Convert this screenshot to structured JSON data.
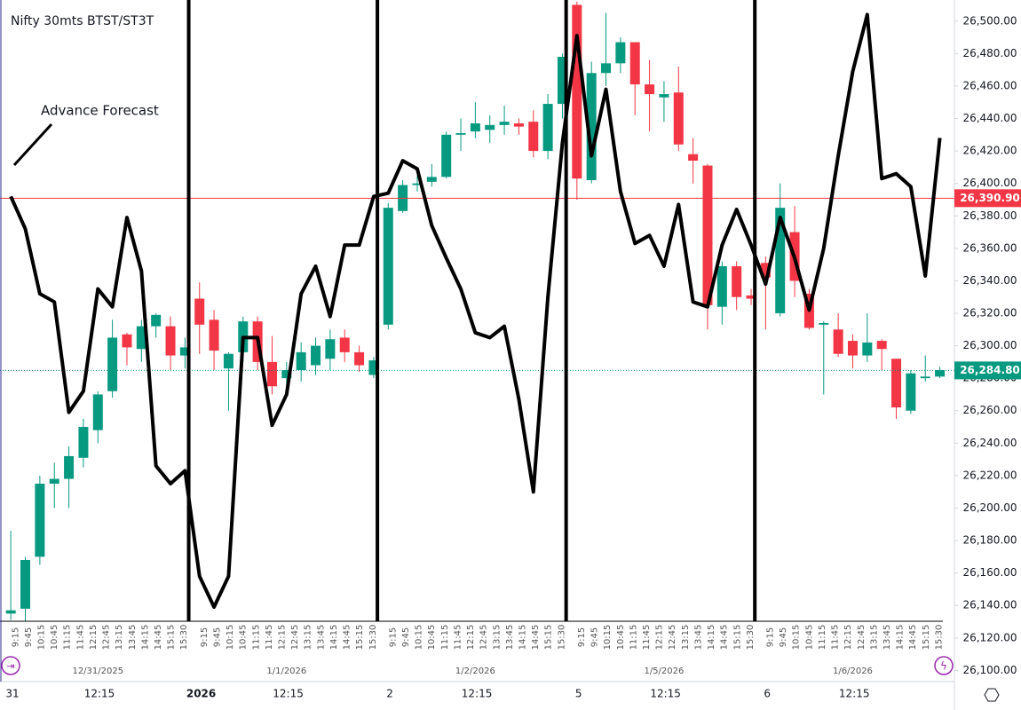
{
  "chart_data": {
    "type": "candlestick",
    "title": "Nifty 30mts BTST/ST3T",
    "annotation": "Advance Forecast",
    "ylim": [
      26092,
      26513
    ],
    "yticks": [
      {
        "value": 26100,
        "label": "26,100.00"
      },
      {
        "value": 26120,
        "label": "26,120.00"
      },
      {
        "value": 26140,
        "label": "26,140.00"
      },
      {
        "value": 26160,
        "label": "26,160.00"
      },
      {
        "value": 26180,
        "label": "26,180.00"
      },
      {
        "value": 26200,
        "label": "26,200.00"
      },
      {
        "value": 26220,
        "label": "26,220.00"
      },
      {
        "value": 26240,
        "label": "26,240.00"
      },
      {
        "value": 26260,
        "label": "26,260.00"
      },
      {
        "value": 26280,
        "label": "26,280.00"
      },
      {
        "value": 26300,
        "label": "26,300.00"
      },
      {
        "value": 26320,
        "label": "26,320.00"
      },
      {
        "value": 26340,
        "label": "26,340.00"
      },
      {
        "value": 26360,
        "label": "26,360.00"
      },
      {
        "value": 26380,
        "label": "26,380.00"
      },
      {
        "value": 26400,
        "label": "26,400.00"
      },
      {
        "value": 26420,
        "label": "26,420.00"
      },
      {
        "value": 26440,
        "label": "26,440.00"
      },
      {
        "value": 26460,
        "label": "26,460.00"
      },
      {
        "value": 26480,
        "label": "26,480.00"
      },
      {
        "value": 26500,
        "label": "26,500.00"
      }
    ],
    "up_color": "#089981",
    "down_color": "#f23645",
    "price_lines": [
      {
        "value": 26390.9,
        "label": "26,390.90",
        "color": "#f23645",
        "style": "solid"
      },
      {
        "value": 26284.8,
        "label": "26,284.80",
        "color": "#089981",
        "style": "dotted"
      }
    ],
    "days": [
      {
        "date": "12/31/2025",
        "times": [
          "9:15",
          "9:45",
          "10:15",
          "10:45",
          "11:15",
          "11:45",
          "12:15",
          "12:45",
          "13:15",
          "13:45",
          "14:15",
          "14:45",
          "15:15",
          "15:30"
        ]
      },
      {
        "date": "1/1/2026",
        "times": [
          "9:15",
          "9:45",
          "10:15",
          "10:45",
          "11:15",
          "11:45",
          "12:15",
          "12:45",
          "13:15",
          "13:45",
          "14:15",
          "14:45",
          "15:15",
          "15:30"
        ]
      },
      {
        "date": "1/2/2026",
        "times": [
          "9:15",
          "9:45",
          "10:15",
          "10:45",
          "11:15",
          "11:45",
          "12:15",
          "12:45",
          "13:15",
          "13:45",
          "14:15",
          "14:45",
          "15:15",
          "15:30"
        ]
      },
      {
        "date": "1/5/2026",
        "times": [
          "9:15",
          "9:45",
          "10:15",
          "10:45",
          "11:15",
          "11:45",
          "12:15",
          "12:45",
          "13:15",
          "13:45",
          "14:15",
          "14:45",
          "15:15",
          "15:30"
        ]
      },
      {
        "date": "1/6/2026",
        "times": [
          "9:15",
          "9:45",
          "10:15",
          "10:45",
          "11:15",
          "11:45",
          "12:15",
          "12:45",
          "13:15",
          "13:45",
          "14:15",
          "14:45",
          "15:15",
          "15:30"
        ]
      }
    ],
    "bottom_axis": [
      "31",
      "12:15",
      "2026",
      "12:15",
      "2",
      "12:15",
      "5",
      "12:15",
      "6",
      "12:15"
    ],
    "candles": {
      "open": [
        26135,
        26138,
        26170,
        26215,
        26218,
        26231,
        26248,
        26272,
        26307,
        26298,
        26312,
        26312,
        26294,
        26329,
        26316,
        26286,
        26296,
        26315,
        26290,
        26280,
        26285,
        26288,
        26292,
        26305,
        26296,
        26282,
        26313,
        26383,
        26399,
        26401,
        26404,
        26430,
        26432,
        26433,
        26436,
        26437,
        26438,
        26420,
        26449,
        26510,
        26402,
        26468,
        26474,
        26487,
        26461,
        26453,
        26456,
        26418,
        26411,
        26324,
        26349,
        26331,
        26351,
        26320,
        26370,
        26332,
        26313,
        26310,
        26303,
        26294,
        26303,
        26292,
        26260,
        26280,
        26281
      ],
      "high": [
        26186,
        26170,
        26220,
        26228,
        26238,
        26255,
        26272,
        26316,
        26308,
        26316,
        26320,
        26318,
        26305,
        26339,
        26322,
        26296,
        26318,
        26318,
        26306,
        26290,
        26302,
        26305,
        26310,
        26310,
        26300,
        26293,
        26388,
        26402,
        26405,
        26412,
        26432,
        26440,
        26450,
        26442,
        26448,
        26440,
        26445,
        26455,
        26480,
        26512,
        26475,
        26505,
        26490,
        26487,
        26476,
        26463,
        26472,
        26428,
        26412,
        26352,
        26352,
        26335,
        26355,
        26400,
        26386,
        26335,
        26315,
        26320,
        26307,
        26320,
        26304,
        26292,
        26285,
        26294,
        26287
      ],
      "low": [
        26131,
        26130,
        26165,
        26200,
        26200,
        26225,
        26240,
        26268,
        26288,
        26290,
        26305,
        26285,
        26286,
        26295,
        26285,
        26260,
        26290,
        26285,
        26270,
        26274,
        26278,
        26282,
        26285,
        26290,
        26284,
        26280,
        26310,
        26382,
        26395,
        26398,
        26403,
        26420,
        26428,
        26425,
        26430,
        26430,
        26416,
        26415,
        26440,
        26390,
        26400,
        26460,
        26468,
        26442,
        26432,
        26438,
        26420,
        26400,
        26310,
        26313,
        26322,
        26325,
        26310,
        26318,
        26330,
        26310,
        26270,
        26293,
        26286,
        26290,
        26285,
        26255,
        26258,
        26278,
        26280
      ],
      "close": [
        26137,
        26168,
        26215,
        26218,
        26232,
        26250,
        26270,
        26305,
        26299,
        26312,
        26319,
        26294,
        26299,
        26313,
        26297,
        26295,
        26315,
        26290,
        26275,
        26285,
        26296,
        26300,
        26304,
        26296,
        26288,
        26291,
        26385,
        26399,
        26400,
        26404,
        26430,
        26431,
        26437,
        26436,
        26438,
        26435,
        26420,
        26449,
        26478,
        26403,
        26468,
        26474,
        26487,
        26461,
        26455,
        26455,
        26424,
        26414,
        26325,
        26349,
        26330,
        26329,
        26342,
        26385,
        26340,
        26311,
        26314,
        26295,
        26294,
        26302,
        26298,
        26262,
        26283,
        26281,
        26285
      ]
    },
    "forecast": {
      "color": "#000000",
      "values": [
        26392,
        26372,
        26332,
        26327,
        26259,
        26272,
        26335,
        26324,
        26379,
        26346,
        26226,
        26215,
        26223,
        26158,
        26139,
        26158,
        26305,
        26305,
        26251,
        26270,
        26332,
        26349,
        26318,
        26362,
        26362,
        26392,
        26394,
        26414,
        26409,
        26374,
        26354,
        26335,
        26308,
        26305,
        26312,
        26267,
        26210,
        26330,
        26425,
        26491,
        26417,
        26458,
        26395,
        26363,
        26368,
        26349,
        26387,
        26327,
        26324,
        26362,
        26384,
        26362,
        26338,
        26379,
        26354,
        26322,
        26360,
        26417,
        26469,
        26504,
        26403,
        26406,
        26398,
        26343,
        26428
      ]
    }
  }
}
